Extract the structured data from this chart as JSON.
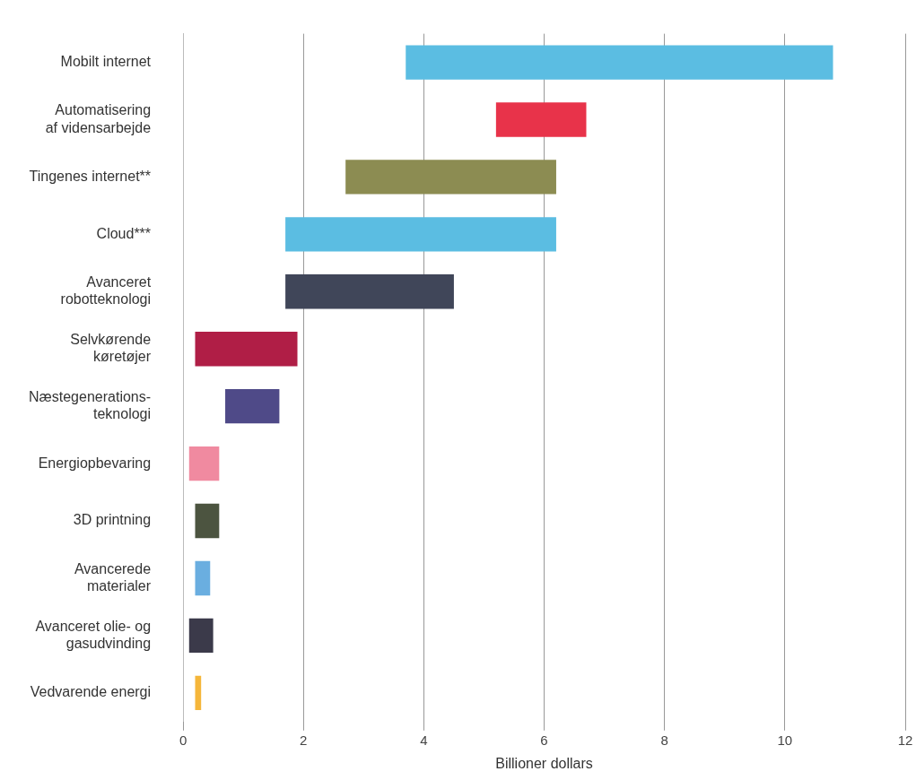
{
  "chart_data": {
    "type": "bar",
    "orientation": "horizontal",
    "xlabel": "Billioner dollars",
    "categories": [
      "Mobilt internet",
      "Automatisering\naf vidensarbejde",
      "Tingenes internet**",
      "Cloud***",
      "Avanceret\nrobotteknologi",
      "Selvkørende\nkøretøjer",
      "Næstegenerations-\nteknologi",
      "Energiopbevaring",
      "3D printning",
      "Avancerede\nmaterialer",
      "Avanceret olie- og\ngasudvinding",
      "Vedvarende energi"
    ],
    "base": [
      3.7,
      5.2,
      2.7,
      1.7,
      1.7,
      0.2,
      0.7,
      0.1,
      0.2,
      0.2,
      0.1,
      0.2
    ],
    "values": [
      7.1,
      1.5,
      3.5,
      4.5,
      2.8,
      1.7,
      0.9,
      0.5,
      0.4,
      0.25,
      0.4,
      0.1
    ],
    "colors": [
      "#5bbde2",
      "#e8334a",
      "#8c8c52",
      "#5bbde2",
      "#404659",
      "#b01e46",
      "#4f4a88",
      "#f08aa0",
      "#4c5440",
      "#6aaee0",
      "#3b3a4a",
      "#f5b63a"
    ],
    "xlim": [
      0,
      12
    ],
    "xticks": [
      0,
      2,
      4,
      6,
      8,
      10,
      12
    ],
    "grid": "x",
    "legend": false
  }
}
